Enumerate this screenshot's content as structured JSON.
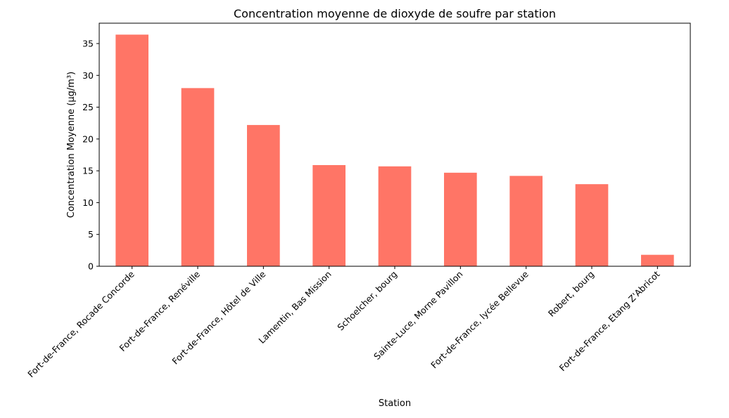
{
  "chart_data": {
    "type": "bar",
    "title": "Concentration moyenne de dioxyde de soufre par station",
    "xlabel": "Station",
    "ylabel": "Concentration Moyenne (µg/m³)",
    "categories": [
      "Fort-de-France, Rocade Concorde",
      "Fort-de-France, Renéville",
      "Fort-de-France, Hôtel de Ville",
      "Lamentin, Bas Mission",
      "Schoelcher, bourg",
      "Sainte-Luce, Morne Pavillon",
      "Fort-de-France, lycée Bellevue",
      "Robert, bourg",
      "Fort-de-France, Etang Z'Abricot"
    ],
    "values": [
      36.4,
      28.0,
      22.2,
      15.9,
      15.7,
      14.7,
      14.2,
      12.9,
      1.8
    ],
    "ylim": [
      0,
      38.2
    ],
    "yticks": [
      0,
      5,
      10,
      15,
      20,
      25,
      30,
      35
    ],
    "bar_color": "#ff7566",
    "grid": false,
    "legend": "none"
  }
}
